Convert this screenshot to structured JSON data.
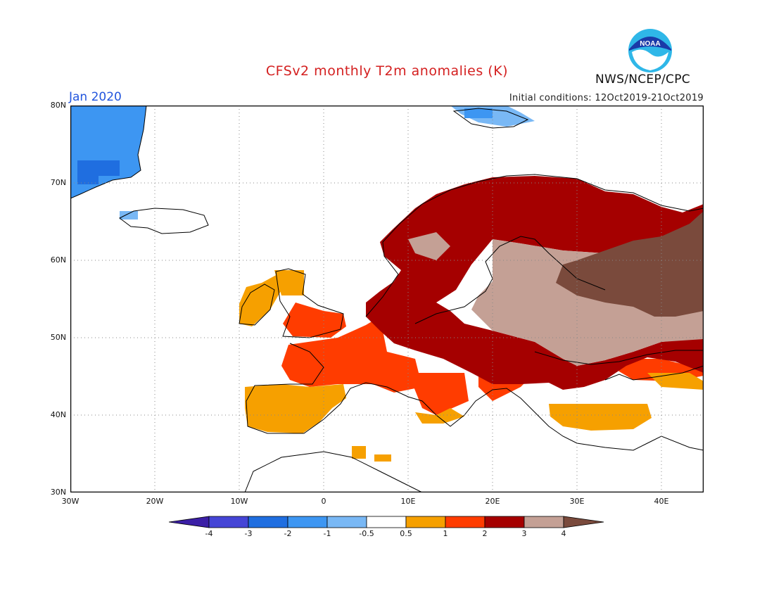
{
  "header": {
    "title": "CFSv2 monthly T2m anomalies (K)",
    "month": "Jan 2020",
    "initial_conditions": "Initial conditions: 12Oct2019-21Oct2019",
    "agency": "NWS/NCEP/CPC",
    "logo_text": "NOAA"
  },
  "axes": {
    "lat_labels": [
      "80N",
      "70N",
      "60N",
      "50N",
      "40N",
      "30N"
    ],
    "lon_labels": [
      "30W",
      "20W",
      "10W",
      "0",
      "10E",
      "20E",
      "30E",
      "40E"
    ]
  },
  "legend": {
    "tick_labels": [
      "-4",
      "-3",
      "-2",
      "-1",
      "-0.5",
      "0.5",
      "1",
      "2",
      "3",
      "4"
    ],
    "bins": [
      {
        "color": "#3b1fa6"
      },
      {
        "color": "#4545d6"
      },
      {
        "color": "#1f6ee0"
      },
      {
        "color": "#3d96f2"
      },
      {
        "color": "#79b8f5"
      },
      {
        "color": "#ffffff"
      },
      {
        "color": "#f6a000"
      },
      {
        "color": "#ff3c00"
      },
      {
        "color": "#a50000"
      },
      {
        "color": "#c4a095"
      },
      {
        "color": "#7a4a3c"
      }
    ]
  },
  "colors": {
    "title": "#d42020",
    "month": "#2255dd",
    "land_outline": "#000000",
    "grid": "#888888"
  }
}
